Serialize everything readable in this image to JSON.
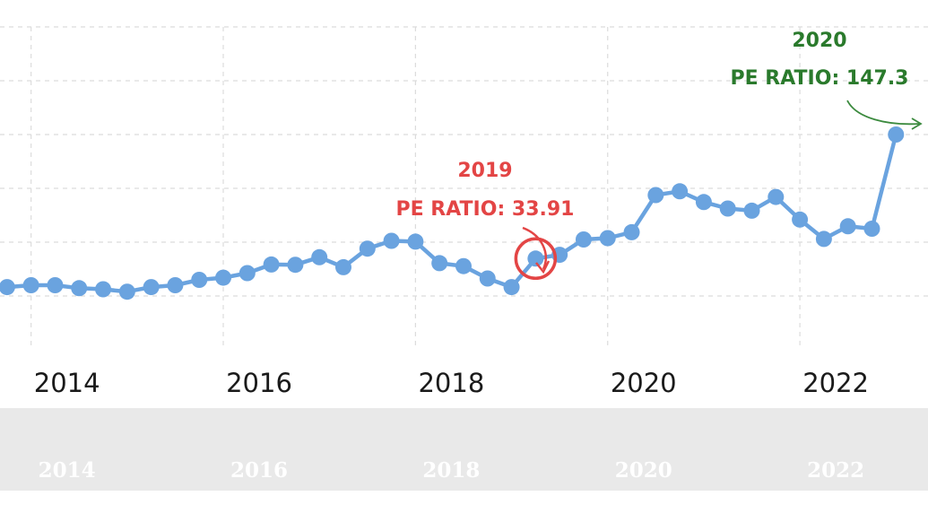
{
  "chart_data": {
    "type": "line",
    "x": [
      "2013-07",
      "2013-10",
      "2014-01",
      "2014-04",
      "2014-07",
      "2014-10",
      "2015-01",
      "2015-04",
      "2015-07",
      "2015-10",
      "2016-01",
      "2016-04",
      "2016-07",
      "2016-10",
      "2017-01",
      "2017-04",
      "2017-07",
      "2017-10",
      "2018-01",
      "2018-04",
      "2018-07",
      "2018-10",
      "2019-01",
      "2019-04",
      "2019-07",
      "2019-10",
      "2020-01",
      "2020-04",
      "2020-07",
      "2020-10",
      "2021-01",
      "2021-04",
      "2021-07",
      "2021-10",
      "2022-01",
      "2022-04",
      "2022-07",
      "2022-10",
      "2023-01"
    ],
    "values": [
      21.8,
      23.3,
      24.0,
      24.0,
      22.9,
      22.5,
      21.6,
      23.3,
      24.0,
      26.0,
      26.8,
      28.5,
      31.7,
      31.6,
      34.4,
      30.7,
      37.6,
      40.5,
      40.2,
      32.2,
      31.1,
      26.5,
      23.3,
      33.9,
      35.3,
      41.0,
      41.5,
      43.7,
      57.5,
      58.9,
      54.9,
      52.5,
      51.7,
      56.8,
      48.4,
      41.2,
      45.9,
      45.0,
      80.0
    ],
    "xlim": [
      "2013-08",
      "2023-05"
    ],
    "ylim": [
      0,
      120
    ],
    "x_ticks": [
      "2014",
      "2016",
      "2018",
      "2020",
      "2022"
    ],
    "navigator_ticks": [
      "2014",
      "2016",
      "2018",
      "2020",
      "2022"
    ],
    "grid": true,
    "line_color": "#6aa3df",
    "annotations": [
      {
        "line1": "2019",
        "line2": "PE RATIO: 33.91",
        "color": "#e34545",
        "x": "2019-04",
        "y": 33.9
      },
      {
        "line1": "2020",
        "line2": "PE RATIO: 147.3",
        "color": "#2a7a2c"
      }
    ]
  }
}
